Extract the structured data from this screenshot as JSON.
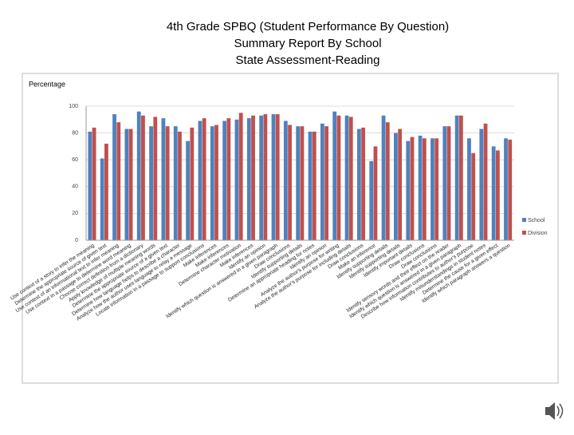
{
  "chart_data": {
    "type": "bar",
    "title": [
      "4th Grade SPBQ (Student Performance By Question)",
      "Summary Report By School",
      "State Assessment-Reading"
    ],
    "y_label": "Percentage",
    "categories": [
      "Use context of a story to infer the meaning",
      "Determine the appropriate source of given text",
      "Use context of an informational text to infer meaning",
      "Use context in a passage to determine word meaning",
      "Choose correct definition from a dictionary",
      "Apply knowledge of multiple meaning words",
      "Determine the appropriate source of a given text",
      "Determine how language helps to describe a character",
      "Analyze how the author uses language to relay a message",
      "Locate information in a passage to support conclusions",
      "Make inferences",
      "Make inferences",
      "Determine character motivation",
      "Make inferences",
      "Identify an opinion",
      "Identify which question is answered in a given paragraph",
      "Draw conclusions",
      "Identify supporting details",
      "Determine an appropriate heading for notes",
      "Identify an opinion",
      "Analyze the author's purpose for writing",
      "Analyze the author's purpose for including details",
      "Draw conclusions",
      "Make an inference",
      "Identify supporting details",
      "Identify supporting details",
      "Identify important details",
      "Draw conclusions",
      "Draw conclusions",
      "Identify sensory words and their effect on the reader",
      "Identify which question is answered in a given paragraph",
      "Describe how information contributes to author's purpose",
      "Identify misunderstandings in student notes",
      "Determine the cause for a given effect",
      "Identify which paragraph answers a question"
    ],
    "series": [
      {
        "name": "School",
        "color": "#4f81bd",
        "values": [
          81,
          61,
          94,
          83,
          96,
          85,
          91,
          85,
          74,
          89,
          85,
          89,
          90,
          91,
          93,
          94,
          89,
          85,
          81,
          87,
          96,
          93,
          83,
          59,
          93,
          80,
          74,
          78,
          76,
          85,
          93,
          76,
          83,
          70,
          76
        ]
      },
      {
        "name": "Division",
        "color": "#c0504d",
        "values": [
          84,
          72,
          88,
          83,
          93,
          92,
          85,
          81,
          84,
          91,
          86,
          91,
          95,
          93,
          94,
          94,
          86,
          85,
          81,
          85,
          93,
          92,
          84,
          70,
          88,
          83,
          77,
          76,
          76,
          85,
          93,
          65,
          87,
          67,
          75
        ]
      }
    ],
    "ylim": [
      0,
      100
    ],
    "yticks": [
      0,
      20,
      40,
      60,
      80,
      100
    ],
    "grid": true,
    "legend": "right"
  }
}
